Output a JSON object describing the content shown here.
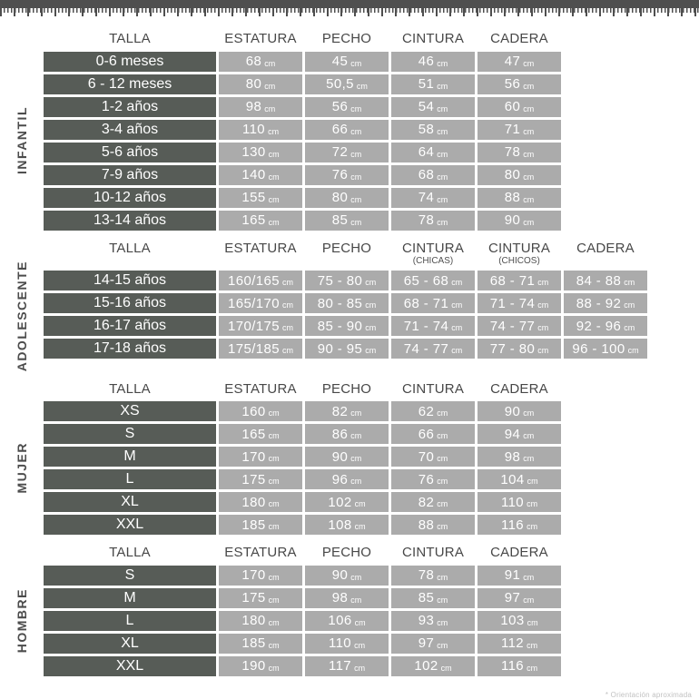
{
  "footnote": "* Orientación aproximada",
  "colors": {
    "dark_cell": "#575c57",
    "light_cell": "#ababab",
    "header_text": "#484848",
    "tape": "#4f4f4f",
    "cell_text": "#ffffff"
  },
  "chart_data": [
    {
      "type": "table",
      "title": "INFANTIL",
      "unit": "cm",
      "columns": [
        "TALLA",
        "ESTATURA",
        "PECHO",
        "CINTURA",
        "CADERA"
      ],
      "column_subs": [
        "",
        "",
        "",
        "",
        ""
      ],
      "rows": [
        [
          "0-6 meses",
          "68",
          "45",
          "46",
          "47"
        ],
        [
          "6 - 12 meses",
          "80",
          "50,5",
          "51",
          "56"
        ],
        [
          "1-2 años",
          "98",
          "56",
          "54",
          "60"
        ],
        [
          "3-4 años",
          "110",
          "66",
          "58",
          "71"
        ],
        [
          "5-6 años",
          "130",
          "72",
          "64",
          "78"
        ],
        [
          "7-9 años",
          "140",
          "76",
          "68",
          "80"
        ],
        [
          "10-12 años",
          "155",
          "80",
          "74",
          "88"
        ],
        [
          "13-14 años",
          "165",
          "85",
          "78",
          "90"
        ]
      ]
    },
    {
      "type": "table",
      "title": "ADOLESCENTE",
      "unit": "cm",
      "columns": [
        "TALLA",
        "ESTATURA",
        "PECHO",
        "CINTURA",
        "CINTURA",
        "CADERA"
      ],
      "column_subs": [
        "",
        "",
        "",
        "(CHICAS)",
        "(CHICOS)",
        ""
      ],
      "rows": [
        [
          "14-15 años",
          "160/165",
          "75 - 80",
          "65 - 68",
          "68 - 71",
          "84 - 88"
        ],
        [
          "15-16 años",
          "165/170",
          "80 - 85",
          "68 - 71",
          "71 - 74",
          "88 - 92"
        ],
        [
          "16-17 años",
          "170/175",
          "85 - 90",
          "71 - 74",
          "74 - 77",
          "92 - 96"
        ],
        [
          "17-18 años",
          "175/185",
          "90 - 95",
          "74 - 77",
          "77 - 80",
          "96 - 100"
        ]
      ]
    },
    {
      "type": "table",
      "title": "MUJER",
      "unit": "cm",
      "columns": [
        "TALLA",
        "ESTATURA",
        "PECHO",
        "CINTURA",
        "CADERA"
      ],
      "column_subs": [
        "",
        "",
        "",
        "",
        ""
      ],
      "rows": [
        [
          "XS",
          "160",
          "82",
          "62",
          "90"
        ],
        [
          "S",
          "165",
          "86",
          "66",
          "94"
        ],
        [
          "M",
          "170",
          "90",
          "70",
          "98"
        ],
        [
          "L",
          "175",
          "96",
          "76",
          "104"
        ],
        [
          "XL",
          "180",
          "102",
          "82",
          "110"
        ],
        [
          "XXL",
          "185",
          "108",
          "88",
          "116"
        ]
      ]
    },
    {
      "type": "table",
      "title": "HOMBRE",
      "unit": "cm",
      "columns": [
        "TALLA",
        "ESTATURA",
        "PECHO",
        "CINTURA",
        "CADERA"
      ],
      "column_subs": [
        "",
        "",
        "",
        "",
        ""
      ],
      "rows": [
        [
          "S",
          "170",
          "90",
          "78",
          "91"
        ],
        [
          "M",
          "175",
          "98",
          "85",
          "97"
        ],
        [
          "L",
          "180",
          "106",
          "93",
          "103"
        ],
        [
          "XL",
          "185",
          "110",
          "97",
          "112"
        ],
        [
          "XXL",
          "190",
          "117",
          "102",
          "116"
        ]
      ]
    }
  ]
}
